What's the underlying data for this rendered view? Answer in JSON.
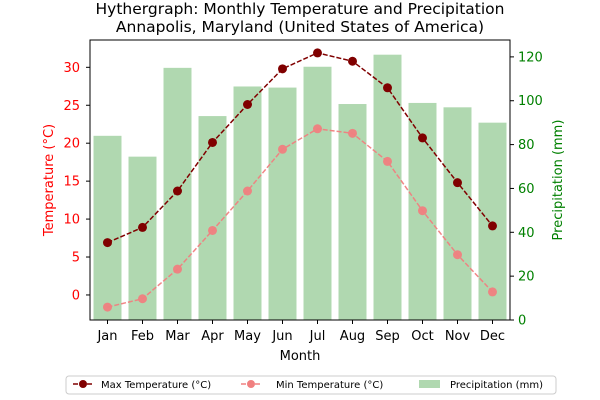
{
  "chart_data": {
    "type": "bar+line",
    "title_line1": "Hythergraph: Monthly Temperature and Precipitation",
    "title_line2": "Annapolis, Maryland (United States of America)",
    "xlabel": "Month",
    "ylabel_left": "Temperature (°C)",
    "ylabel_right": "Precipitation (mm)",
    "categories": [
      "Jan",
      "Feb",
      "Mar",
      "Apr",
      "May",
      "Jun",
      "Jul",
      "Aug",
      "Sep",
      "Oct",
      "Nov",
      "Dec"
    ],
    "ylim_left": [
      -3.3,
      33.6
    ],
    "yticks_left": [
      0,
      5,
      10,
      15,
      20,
      25,
      30
    ],
    "ylim_right": [
      0,
      127.7
    ],
    "yticks_right": [
      0,
      20,
      40,
      60,
      80,
      100,
      120
    ],
    "grid": false,
    "legend_position": "bottom",
    "series": [
      {
        "name": "Max Temperature (°C)",
        "kind": "line",
        "axis": "left",
        "color": "#800000",
        "values": [
          6.9,
          8.9,
          13.7,
          20.1,
          25.1,
          29.8,
          31.9,
          30.8,
          27.3,
          20.7,
          14.8,
          9.1
        ]
      },
      {
        "name": "Min Temperature (°C)",
        "kind": "line",
        "axis": "left",
        "color": "#f08080",
        "values": [
          -1.6,
          -0.5,
          3.4,
          8.5,
          13.7,
          19.2,
          21.9,
          21.3,
          17.6,
          11.1,
          5.3,
          0.4
        ]
      },
      {
        "name": "Precipitation (mm)",
        "kind": "bar",
        "axis": "right",
        "color": "#b0d8b0",
        "values": [
          84,
          74.5,
          115,
          93,
          106.5,
          106,
          115.5,
          98.5,
          121,
          99,
          97,
          90
        ]
      }
    ],
    "colors": {
      "left_axis": "#ff0000",
      "right_axis": "#008000",
      "bar": "#b0d8b0"
    }
  }
}
